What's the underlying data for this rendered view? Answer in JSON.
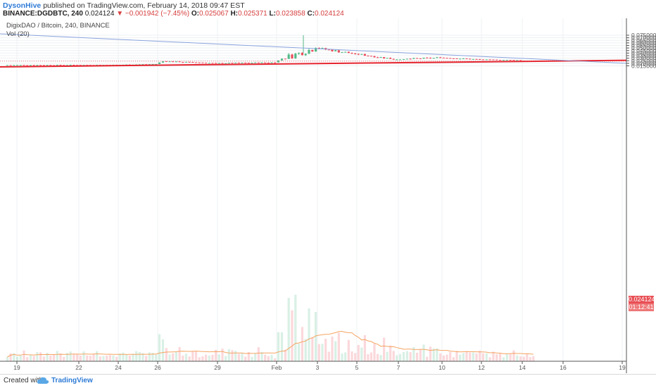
{
  "header": {
    "author": "DysonHive",
    "published": "published on TradingView.com, February 14, 2018 09:47 EST",
    "symbol": "BINANCE:DGDBTC, 240",
    "last": "0.024124",
    "arrow": "▼",
    "change": "−0.001942 (−7.45%)",
    "o_label": "O:",
    "o_value": "0.025067",
    "h_label": "H:",
    "h_value": "0.025371",
    "l_label": "L:",
    "l_value": "0.023858",
    "c_label": "C:",
    "c_value": "0.024124"
  },
  "legend": {
    "title": "DigixDAO / Bitcoin, 240, BINANCE",
    "indicator": "Vol (20)"
  },
  "price_tags": {
    "last": "0.024124",
    "countdown": "01:12:41"
  },
  "footer": {
    "created": "Created with",
    "brand": "TradingView"
  },
  "colors": {
    "up": "#53b987",
    "down": "#eb4d5c",
    "support": "#e5252f",
    "resistance": "#8aa4de",
    "ma": "#f5a462",
    "last_price": "#e84f55",
    "countdown_bg": "#ee7778"
  },
  "chart_data": {
    "type": "candlestick",
    "interval": "240",
    "y_ticks": [
      "0.075000",
      "0.070000",
      "0.065000",
      "0.060000",
      "0.055000",
      "0.050000",
      "0.045000",
      "0.040000",
      "0.035000",
      "0.030000",
      "0.025000",
      "0.020000",
      "0.015000"
    ],
    "x_ticks": [
      "19",
      "22",
      "24",
      "26",
      "29",
      "Feb",
      "3",
      "5",
      "7",
      "10",
      "12",
      "14",
      "16",
      "19"
    ],
    "ylim": [
      0.0113,
      0.0775
    ],
    "segments": [
      {
        "from": "19",
        "to": "22",
        "open": 0.0165,
        "close": 0.0168,
        "low": 0.0158,
        "high": 0.019
      },
      {
        "from": "22",
        "to": "24",
        "open": 0.0168,
        "close": 0.017,
        "low": 0.016,
        "high": 0.0185
      },
      {
        "from": "24",
        "to": "26",
        "open": 0.017,
        "close": 0.0185,
        "low": 0.0162,
        "high": 0.0195
      },
      {
        "from": "26",
        "to": "26",
        "open": 0.0185,
        "close": 0.024,
        "low": 0.0183,
        "high": 0.0285
      },
      {
        "from": "26",
        "to": "29",
        "open": 0.024,
        "close": 0.0202,
        "low": 0.0198,
        "high": 0.0245
      },
      {
        "from": "29",
        "to": "Feb",
        "open": 0.0202,
        "close": 0.0218,
        "low": 0.0198,
        "high": 0.0245
      },
      {
        "from": "Feb",
        "to": "Feb",
        "open": 0.0218,
        "close": 0.029,
        "low": 0.0215,
        "high": 0.03
      },
      {
        "from": "Feb",
        "to": "3",
        "open": 0.029,
        "close": 0.05,
        "low": 0.0285,
        "high": 0.075
      },
      {
        "from": "3",
        "to": "5",
        "open": 0.05,
        "close": 0.0385,
        "low": 0.037,
        "high": 0.055
      },
      {
        "from": "5",
        "to": "7",
        "open": 0.0385,
        "close": 0.0275,
        "low": 0.0268,
        "high": 0.04
      },
      {
        "from": "7",
        "to": "7",
        "open": 0.0275,
        "close": 0.028,
        "low": 0.027,
        "high": 0.0285
      },
      {
        "from": "7",
        "to": "10",
        "open": 0.028,
        "close": 0.031,
        "low": 0.0278,
        "high": 0.0395
      },
      {
        "from": "10",
        "to": "12",
        "open": 0.031,
        "close": 0.0275,
        "low": 0.027,
        "high": 0.0325
      },
      {
        "from": "12",
        "to": "14",
        "open": 0.0275,
        "close": 0.026,
        "low": 0.0255,
        "high": 0.028
      },
      {
        "from": "14",
        "to": "14",
        "open": 0.025067,
        "close": 0.024124,
        "low": 0.023858,
        "high": 0.025371
      }
    ],
    "trendlines": [
      {
        "name": "support",
        "start": {
          "x": "19",
          "y": 0.013
        },
        "end": {
          "x": "19",
          "y": 0.0258
        }
      },
      {
        "name": "resistance",
        "start": {
          "x": "19",
          "y": 0.0778
        },
        "end": {
          "x": "19",
          "y": 0.02
        }
      }
    ],
    "last_price": 0.024124
  }
}
